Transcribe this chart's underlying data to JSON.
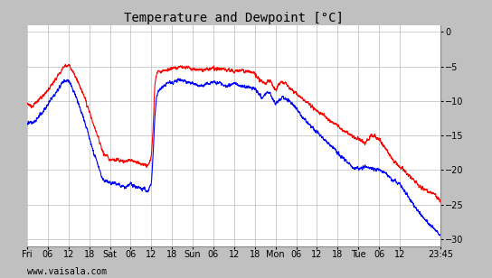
{
  "title": "Temperature and Dewpoint [°C]",
  "temp_color": "#ff0000",
  "dewp_color": "#0000ff",
  "background_color": "#c0c0c0",
  "plot_bg_color": "#ffffff",
  "grid_color": "#bbbbbb",
  "ylim": [
    -31,
    1
  ],
  "yticks": [
    0,
    -5,
    -10,
    -15,
    -20,
    -25,
    -30
  ],
  "watermark": "www.vaisala.com",
  "xtick_labels": [
    "Fri",
    "06",
    "12",
    "18",
    "Sat",
    "06",
    "12",
    "18",
    "Sun",
    "06",
    "12",
    "18",
    "Mon",
    "06",
    "12",
    "18",
    "Tue",
    "06",
    "12",
    "23:45"
  ],
  "xtick_positions": [
    0,
    6,
    12,
    18,
    24,
    30,
    36,
    42,
    48,
    54,
    60,
    66,
    72,
    78,
    84,
    90,
    96,
    102,
    108,
    119.75
  ],
  "total_hours": 119.75,
  "linewidth": 0.8,
  "title_fontsize": 10,
  "tick_fontsize": 7,
  "watermark_fontsize": 7
}
